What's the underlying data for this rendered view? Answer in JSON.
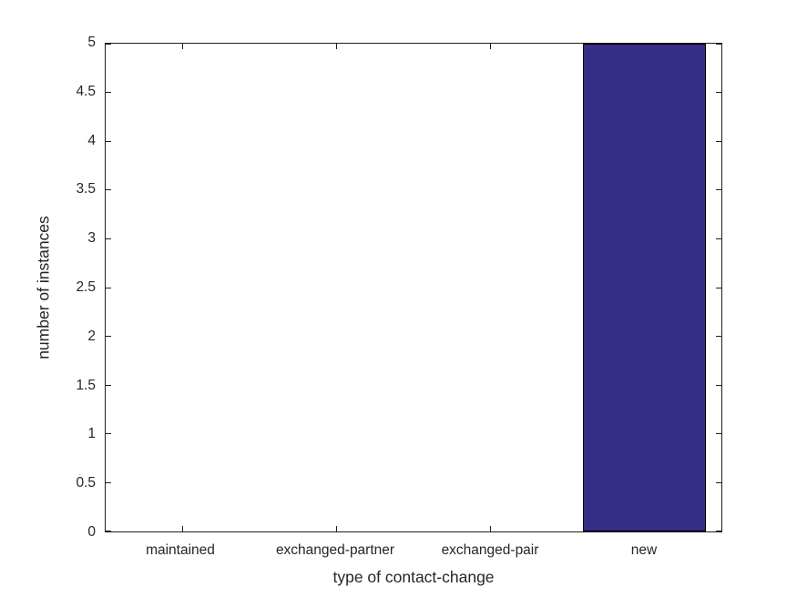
{
  "chart_data": {
    "type": "bar",
    "title": "",
    "xlabel": "type of contact-change",
    "ylabel": "number of instances",
    "categories": [
      "maintained",
      "exchanged-partner",
      "exchanged-pair",
      "new"
    ],
    "values": [
      0,
      0,
      0,
      5
    ],
    "ylim": [
      0,
      5
    ],
    "ytick_step": 0.5,
    "ytick_labels": [
      "0",
      "0.5",
      "1",
      "1.5",
      "2",
      "2.5",
      "3",
      "3.5",
      "4",
      "4.5",
      "5"
    ],
    "bar_width_fraction": 0.8,
    "bar_face_color": "#362d87",
    "bar_edge_color": "#000000",
    "axis_color": "#1f1f1f",
    "text_color": "#262626",
    "grid": false,
    "box": true,
    "tick_direction": "in",
    "legend_position": "none"
  }
}
